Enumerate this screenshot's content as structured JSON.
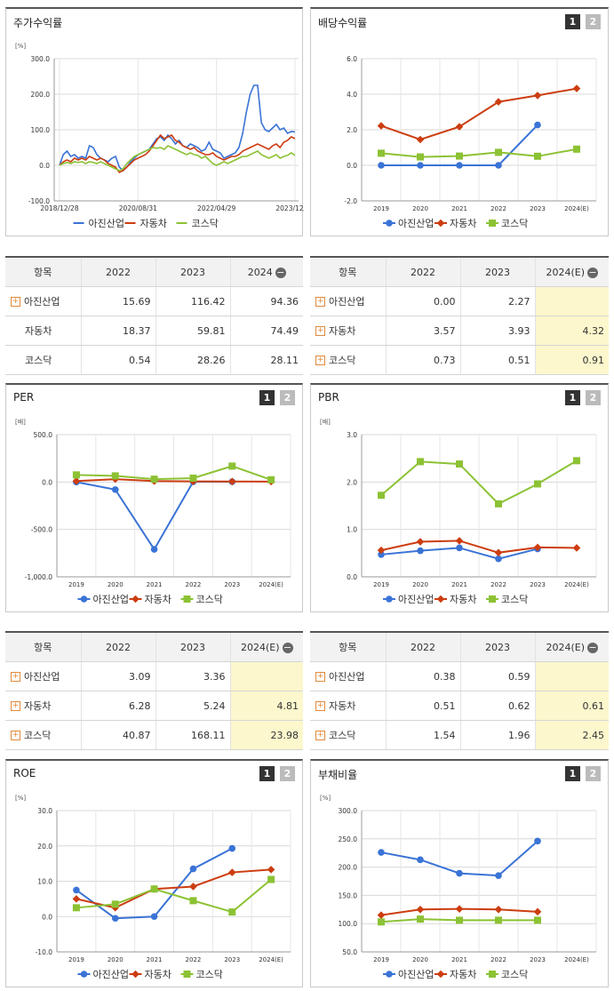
{
  "panels": {
    "stock_return": {
      "title": "주가수익률",
      "unit": "[%]"
    },
    "dividend": {
      "title": "배당수익률",
      "unit": ""
    },
    "per": {
      "title": "PER",
      "unit": "[배]"
    },
    "pbr": {
      "title": "PBR",
      "unit": "[배]"
    },
    "roe": {
      "title": "ROE",
      "unit": "[%]"
    },
    "debt": {
      "title": "부채비율",
      "unit": "[%]"
    }
  },
  "buttons": {
    "one": "1",
    "two": "2"
  },
  "legend": {
    "s1": "아진산업",
    "s2": "자동차",
    "s3": "코스닥"
  },
  "colors": {
    "s1": "#3a73d6",
    "s2": "#cc3d10",
    "s3": "#8cc234"
  },
  "tables": {
    "stock_return": {
      "headers": [
        "항목",
        "2022",
        "2023",
        "2024"
      ],
      "rows": [
        {
          "name": "아진산업",
          "v": [
            "15.69",
            "116.42",
            "94.36"
          ]
        },
        {
          "name": "자동차",
          "v": [
            "18.37",
            "59.81",
            "74.49"
          ]
        },
        {
          "name": "코스닥",
          "v": [
            "0.54",
            "28.26",
            "28.11"
          ]
        }
      ]
    },
    "dividend": {
      "headers": [
        "항목",
        "2022",
        "2023",
        "2024(E)"
      ],
      "rows": [
        {
          "name": "아진산업",
          "v": [
            "0.00",
            "2.27",
            ""
          ]
        },
        {
          "name": "자동차",
          "v": [
            "3.57",
            "3.93",
            "4.32"
          ]
        },
        {
          "name": "코스닥",
          "v": [
            "0.73",
            "0.51",
            "0.91"
          ]
        }
      ]
    },
    "per": {
      "headers": [
        "항목",
        "2022",
        "2023",
        "2024(E)"
      ],
      "rows": [
        {
          "name": "아진산업",
          "v": [
            "3.09",
            "3.36",
            ""
          ]
        },
        {
          "name": "자동차",
          "v": [
            "6.28",
            "5.24",
            "4.81"
          ]
        },
        {
          "name": "코스닥",
          "v": [
            "40.87",
            "168.11",
            "23.98"
          ]
        }
      ]
    },
    "pbr": {
      "headers": [
        "항목",
        "2022",
        "2023",
        "2024(E)"
      ],
      "rows": [
        {
          "name": "아진산업",
          "v": [
            "0.38",
            "0.59",
            ""
          ]
        },
        {
          "name": "자동차",
          "v": [
            "0.51",
            "0.62",
            "0.61"
          ]
        },
        {
          "name": "코스닥",
          "v": [
            "1.54",
            "1.96",
            "2.45"
          ]
        }
      ]
    }
  },
  "chart_data": [
    {
      "id": "stock_return",
      "type": "line",
      "xticks": [
        "2018/12/28",
        "2020/08/31",
        "2022/04/29",
        "2023/12/28"
      ],
      "yticks": [
        "300.0",
        "200.0",
        "100.0",
        "0.0",
        "-100.0"
      ],
      "ylim": [
        -100,
        300
      ],
      "series": [
        {
          "name": "아진산업",
          "values": [
            0,
            30,
            40,
            25,
            30,
            20,
            25,
            20,
            55,
            50,
            30,
            20,
            15,
            10,
            20,
            25,
            -5,
            -15,
            -5,
            10,
            20,
            30,
            35,
            40,
            45,
            60,
            75,
            80,
            70,
            85,
            75,
            60,
            70,
            55,
            50,
            60,
            55,
            50,
            40,
            45,
            65,
            45,
            40,
            35,
            20,
            25,
            30,
            35,
            50,
            90,
            150,
            200,
            225,
            225,
            120,
            100,
            95,
            105,
            115,
            100,
            105,
            90,
            95,
            94
          ]
        },
        {
          "name": "자동차",
          "values": [
            0,
            10,
            15,
            10,
            20,
            15,
            20,
            15,
            25,
            20,
            15,
            20,
            15,
            5,
            0,
            -5,
            -20,
            -15,
            -5,
            5,
            15,
            20,
            25,
            30,
            40,
            55,
            70,
            85,
            75,
            80,
            85,
            70,
            65,
            55,
            50,
            45,
            50,
            40,
            35,
            30,
            30,
            35,
            25,
            20,
            15,
            20,
            25,
            25,
            30,
            40,
            45,
            50,
            55,
            60,
            55,
            50,
            45,
            55,
            60,
            50,
            65,
            70,
            80,
            75
          ]
        },
        {
          "name": "코스닥",
          "values": [
            0,
            5,
            8,
            5,
            10,
            8,
            10,
            5,
            10,
            8,
            5,
            10,
            5,
            0,
            -5,
            -10,
            -15,
            -10,
            5,
            15,
            25,
            30,
            35,
            40,
            45,
            50,
            48,
            50,
            45,
            55,
            50,
            45,
            40,
            35,
            30,
            35,
            30,
            28,
            20,
            25,
            15,
            5,
            0,
            5,
            10,
            5,
            10,
            15,
            20,
            25,
            25,
            30,
            35,
            40,
            30,
            25,
            20,
            25,
            30,
            20,
            25,
            28,
            35,
            28
          ]
        }
      ]
    },
    {
      "id": "dividend",
      "type": "line",
      "categories": [
        "2019",
        "2020",
        "2021",
        "2022",
        "2023",
        "2024(E)"
      ],
      "yticks": [
        "6.0",
        "4.0",
        "2.0",
        "0.0",
        "-2.0"
      ],
      "ylim": [
        -2,
        6
      ],
      "series": [
        {
          "name": "아진산업",
          "values": [
            0.0,
            0.0,
            0.0,
            0.0,
            2.27,
            null
          ]
        },
        {
          "name": "자동차",
          "values": [
            2.22,
            1.45,
            2.17,
            3.57,
            3.93,
            4.32
          ]
        },
        {
          "name": "코스닥",
          "values": [
            0.68,
            0.47,
            0.52,
            0.73,
            0.51,
            0.91
          ]
        }
      ]
    },
    {
      "id": "per",
      "type": "line",
      "categories": [
        "2019",
        "2020",
        "2021",
        "2022",
        "2023",
        "2024(E)"
      ],
      "yticks": [
        "500.0",
        "0.0",
        "-500.0",
        "-1,000.0"
      ],
      "ylim": [
        -1000,
        500
      ],
      "series": [
        {
          "name": "아진산업",
          "values": [
            0,
            -80,
            -710,
            3.09,
            3.36,
            null
          ]
        },
        {
          "name": "자동차",
          "values": [
            10,
            30,
            10,
            6.28,
            5.24,
            4.81
          ]
        },
        {
          "name": "코스닥",
          "values": [
            75,
            65,
            30,
            40.87,
            168.11,
            23.98
          ]
        }
      ]
    },
    {
      "id": "pbr",
      "type": "line",
      "categories": [
        "2019",
        "2020",
        "2021",
        "2022",
        "2023",
        "2024(E)"
      ],
      "yticks": [
        "3.0",
        "2.0",
        "1.0",
        "0.0"
      ],
      "ylim": [
        0,
        3
      ],
      "series": [
        {
          "name": "아진산업",
          "values": [
            0.47,
            0.55,
            0.61,
            0.38,
            0.59,
            null
          ]
        },
        {
          "name": "자동차",
          "values": [
            0.56,
            0.74,
            0.76,
            0.51,
            0.62,
            0.61
          ]
        },
        {
          "name": "코스닥",
          "values": [
            1.72,
            2.43,
            2.38,
            1.54,
            1.96,
            2.45
          ]
        }
      ]
    },
    {
      "id": "roe",
      "type": "line",
      "categories": [
        "2019",
        "2020",
        "2021",
        "2022",
        "2023",
        "2024(E)"
      ],
      "yticks": [
        "30.0",
        "20.0",
        "10.0",
        "0.0",
        "-10.0"
      ],
      "ylim": [
        -10,
        30
      ],
      "series": [
        {
          "name": "아진산업",
          "values": [
            7.5,
            -0.5,
            0.0,
            13.5,
            19.3,
            null
          ]
        },
        {
          "name": "자동차",
          "values": [
            5.0,
            2.5,
            7.8,
            8.5,
            12.5,
            13.3
          ]
        },
        {
          "name": "코스닥",
          "values": [
            2.5,
            3.5,
            7.8,
            4.5,
            1.3,
            10.5
          ]
        }
      ]
    },
    {
      "id": "debt",
      "type": "line",
      "categories": [
        "2019",
        "2020",
        "2021",
        "2022",
        "2023",
        "2024(E)"
      ],
      "yticks": [
        "300.0",
        "250.0",
        "200.0",
        "150.0",
        "100.0",
        "50.0"
      ],
      "ylim": [
        50,
        300
      ],
      "series": [
        {
          "name": "아진산업",
          "values": [
            226,
            213,
            189,
            185,
            246,
            null
          ]
        },
        {
          "name": "자동차",
          "values": [
            115,
            125,
            126,
            125,
            121,
            null
          ]
        },
        {
          "name": "코스닥",
          "values": [
            103,
            108,
            106,
            106,
            106,
            null
          ]
        }
      ]
    }
  ]
}
